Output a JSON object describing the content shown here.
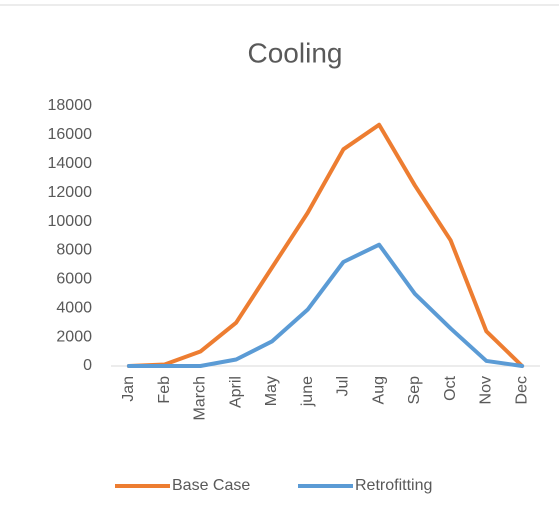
{
  "chart_data": {
    "type": "line",
    "title": "Cooling",
    "categories": [
      "Jan",
      "Feb",
      "March",
      "April",
      "May",
      "june",
      "Jul",
      "Aug",
      "Sep",
      "Oct",
      "Nov",
      "Dec"
    ],
    "series": [
      {
        "name": "Base Case",
        "color": "#ed7d31",
        "values": [
          0,
          100,
          1000,
          3000,
          6800,
          10600,
          15000,
          16700,
          12500,
          8700,
          2400,
          0
        ]
      },
      {
        "name": "Retrofitting",
        "color": "#5b9bd5",
        "values": [
          0,
          0,
          0,
          450,
          1700,
          3900,
          7200,
          8400,
          5000,
          2600,
          350,
          0
        ]
      }
    ],
    "ylim": [
      0,
      18000
    ],
    "yticks": [
      0,
      2000,
      4000,
      6000,
      8000,
      10000,
      12000,
      14000,
      16000,
      18000
    ],
    "grid": false,
    "legend": "bottom"
  }
}
